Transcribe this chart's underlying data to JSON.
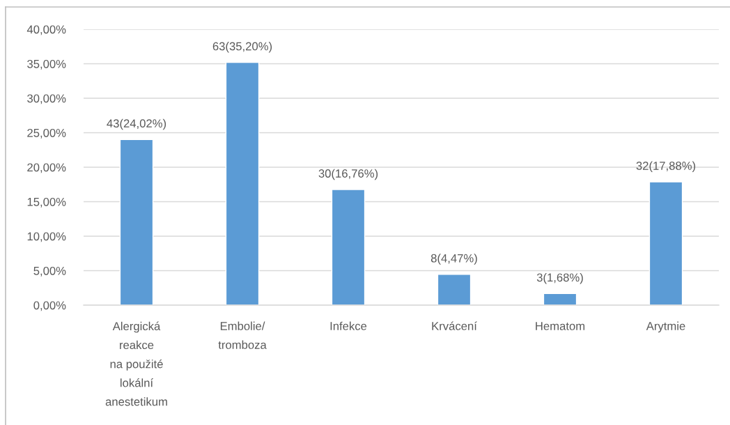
{
  "chart_data": {
    "type": "bar",
    "categories": [
      "Alergická\nreakce\nna použité\nlokální\nanestetikum",
      "Embolie/\ntromboza",
      "Infekce",
      "Krvácení",
      "Hematom",
      "Arytmie"
    ],
    "values": [
      24.02,
      35.2,
      16.76,
      4.47,
      1.68,
      17.88
    ],
    "value_labels": [
      "43(24,02%)",
      "63(35,20%)",
      "30(16,76%)",
      "8(4,47%)",
      "3(1,68%)",
      "32(17,88%)"
    ],
    "color": "#5b9bd5",
    "ylim": [
      0,
      40
    ],
    "yticks": [
      {
        "value": 0,
        "label": "0,00%"
      },
      {
        "value": 5,
        "label": "5,00%"
      },
      {
        "value": 10,
        "label": "10,00%"
      },
      {
        "value": 15,
        "label": "15,00%"
      },
      {
        "value": 20,
        "label": "20,00%"
      },
      {
        "value": 25,
        "label": "25,00%"
      },
      {
        "value": 30,
        "label": "30,00%"
      },
      {
        "value": 35,
        "label": "35,00%"
      },
      {
        "value": 40,
        "label": "40,00%"
      }
    ],
    "grid": "y"
  }
}
